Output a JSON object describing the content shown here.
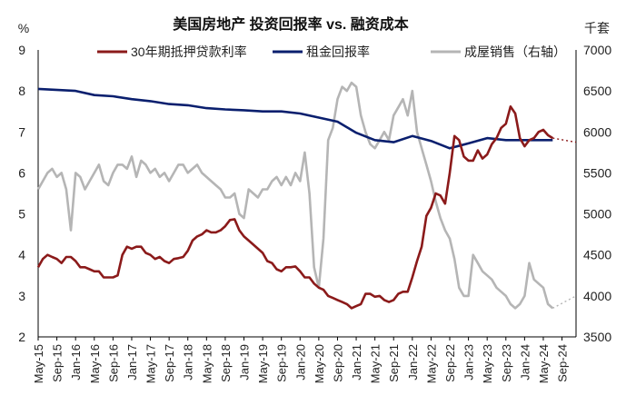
{
  "chart_data": {
    "type": "line",
    "title": "美国房地产 投资回报率 vs. 融资成本",
    "ylabel_left": "%",
    "ylabel_right": "千套",
    "ylim_left": [
      2,
      9
    ],
    "ylim_right": [
      3500,
      7000
    ],
    "yticks_left": [
      "2",
      "3",
      "4",
      "5",
      "6",
      "7",
      "8",
      "9"
    ],
    "yticks_right": [
      "3500",
      "4000",
      "4500",
      "5000",
      "5500",
      "6000",
      "6500",
      "7000"
    ],
    "x_range": [
      "2015-05",
      "2024-12"
    ],
    "x_ticks": [
      "May-15",
      "Sep-15",
      "Jan-16",
      "May-16",
      "Sep-16",
      "Jan-17",
      "May-17",
      "Sep-17",
      "Jan-18",
      "May-18",
      "Sep-18",
      "Jan-19",
      "May-19",
      "Sep-19",
      "Jan-20",
      "May-20",
      "Sep-20",
      "Jan-21",
      "May-21",
      "Sep-21",
      "Jan-22",
      "May-22",
      "Sep-22",
      "Jan-23",
      "May-23",
      "Sep-23",
      "Jan-24",
      "May-24",
      "Sep-24"
    ],
    "series": [
      {
        "name": "30年期抵押贷款利率",
        "axis": "left",
        "color": "#8b1a1a",
        "points": [
          [
            "2015-05",
            3.7
          ],
          [
            "2015-06",
            3.9
          ],
          [
            "2015-07",
            4.0
          ],
          [
            "2015-08",
            3.95
          ],
          [
            "2015-09",
            3.9
          ],
          [
            "2015-10",
            3.8
          ],
          [
            "2015-11",
            3.95
          ],
          [
            "2015-12",
            3.95
          ],
          [
            "2016-01",
            3.85
          ],
          [
            "2016-02",
            3.7
          ],
          [
            "2016-03",
            3.7
          ],
          [
            "2016-04",
            3.65
          ],
          [
            "2016-05",
            3.6
          ],
          [
            "2016-06",
            3.6
          ],
          [
            "2016-07",
            3.45
          ],
          [
            "2016-08",
            3.45
          ],
          [
            "2016-09",
            3.45
          ],
          [
            "2016-10",
            3.5
          ],
          [
            "2016-11",
            4.0
          ],
          [
            "2016-12",
            4.2
          ],
          [
            "2017-01",
            4.15
          ],
          [
            "2017-02",
            4.2
          ],
          [
            "2017-03",
            4.2
          ],
          [
            "2017-04",
            4.05
          ],
          [
            "2017-05",
            4.0
          ],
          [
            "2017-06",
            3.9
          ],
          [
            "2017-07",
            3.95
          ],
          [
            "2017-08",
            3.85
          ],
          [
            "2017-09",
            3.8
          ],
          [
            "2017-10",
            3.9
          ],
          [
            "2017-11",
            3.92
          ],
          [
            "2017-12",
            3.95
          ],
          [
            "2018-01",
            4.1
          ],
          [
            "2018-02",
            4.35
          ],
          [
            "2018-03",
            4.45
          ],
          [
            "2018-04",
            4.5
          ],
          [
            "2018-05",
            4.6
          ],
          [
            "2018-06",
            4.55
          ],
          [
            "2018-07",
            4.55
          ],
          [
            "2018-08",
            4.6
          ],
          [
            "2018-09",
            4.7
          ],
          [
            "2018-10",
            4.85
          ],
          [
            "2018-11",
            4.87
          ],
          [
            "2018-12",
            4.6
          ],
          [
            "2019-01",
            4.45
          ],
          [
            "2019-02",
            4.35
          ],
          [
            "2019-03",
            4.25
          ],
          [
            "2019-04",
            4.15
          ],
          [
            "2019-05",
            4.05
          ],
          [
            "2019-06",
            3.85
          ],
          [
            "2019-07",
            3.8
          ],
          [
            "2019-08",
            3.65
          ],
          [
            "2019-09",
            3.6
          ],
          [
            "2019-10",
            3.7
          ],
          [
            "2019-11",
            3.7
          ],
          [
            "2019-12",
            3.72
          ],
          [
            "2020-01",
            3.6
          ],
          [
            "2020-02",
            3.45
          ],
          [
            "2020-03",
            3.45
          ],
          [
            "2020-04",
            3.3
          ],
          [
            "2020-05",
            3.2
          ],
          [
            "2020-06",
            3.15
          ],
          [
            "2020-07",
            3.0
          ],
          [
            "2020-08",
            2.95
          ],
          [
            "2020-09",
            2.9
          ],
          [
            "2020-10",
            2.85
          ],
          [
            "2020-11",
            2.8
          ],
          [
            "2020-12",
            2.7
          ],
          [
            "2021-01",
            2.75
          ],
          [
            "2021-02",
            2.8
          ],
          [
            "2021-03",
            3.05
          ],
          [
            "2021-04",
            3.05
          ],
          [
            "2021-05",
            2.98
          ],
          [
            "2021-06",
            3.0
          ],
          [
            "2021-07",
            2.9
          ],
          [
            "2021-08",
            2.85
          ],
          [
            "2021-09",
            2.9
          ],
          [
            "2021-10",
            3.05
          ],
          [
            "2021-11",
            3.1
          ],
          [
            "2021-12",
            3.1
          ],
          [
            "2022-01",
            3.45
          ],
          [
            "2022-02",
            3.85
          ],
          [
            "2022-03",
            4.2
          ],
          [
            "2022-04",
            4.95
          ],
          [
            "2022-05",
            5.15
          ],
          [
            "2022-06",
            5.5
          ],
          [
            "2022-07",
            5.45
          ],
          [
            "2022-08",
            5.25
          ],
          [
            "2022-09",
            6.0
          ],
          [
            "2022-10",
            6.9
          ],
          [
            "2022-11",
            6.8
          ],
          [
            "2022-12",
            6.4
          ],
          [
            "2023-01",
            6.3
          ],
          [
            "2023-02",
            6.3
          ],
          [
            "2023-03",
            6.55
          ],
          [
            "2023-04",
            6.35
          ],
          [
            "2023-05",
            6.45
          ],
          [
            "2023-06",
            6.7
          ],
          [
            "2023-07",
            6.85
          ],
          [
            "2023-08",
            7.1
          ],
          [
            "2023-09",
            7.2
          ],
          [
            "2023-10",
            7.62
          ],
          [
            "2023-11",
            7.45
          ],
          [
            "2023-12",
            6.85
          ],
          [
            "2024-01",
            6.65
          ],
          [
            "2024-02",
            6.8
          ],
          [
            "2024-03",
            6.85
          ],
          [
            "2024-04",
            7.0
          ],
          [
            "2024-05",
            7.05
          ],
          [
            "2024-06",
            6.92
          ],
          [
            "2024-07",
            6.85
          ]
        ],
        "forecast": [
          [
            "2024-07",
            6.85
          ],
          [
            "2024-12",
            6.75
          ]
        ]
      },
      {
        "name": "租金回报率",
        "axis": "left",
        "color": "#0a1f6e",
        "points": [
          [
            "2015-05",
            8.05
          ],
          [
            "2016-01",
            8.0
          ],
          [
            "2016-05",
            7.9
          ],
          [
            "2016-09",
            7.87
          ],
          [
            "2017-01",
            7.8
          ],
          [
            "2017-05",
            7.75
          ],
          [
            "2017-09",
            7.68
          ],
          [
            "2018-01",
            7.65
          ],
          [
            "2018-05",
            7.58
          ],
          [
            "2018-09",
            7.55
          ],
          [
            "2019-01",
            7.53
          ],
          [
            "2019-05",
            7.5
          ],
          [
            "2019-09",
            7.5
          ],
          [
            "2020-01",
            7.45
          ],
          [
            "2020-05",
            7.35
          ],
          [
            "2020-09",
            7.25
          ],
          [
            "2021-01",
            6.98
          ],
          [
            "2021-05",
            6.8
          ],
          [
            "2021-09",
            6.75
          ],
          [
            "2022-01",
            6.9
          ],
          [
            "2022-05",
            6.78
          ],
          [
            "2022-09",
            6.6
          ],
          [
            "2023-01",
            6.72
          ],
          [
            "2023-05",
            6.85
          ],
          [
            "2023-09",
            6.8
          ],
          [
            "2024-01",
            6.8
          ],
          [
            "2024-05",
            6.8
          ],
          [
            "2024-07",
            6.8
          ]
        ]
      },
      {
        "name": "成屋销售（右轴）",
        "axis": "right",
        "color": "#b5b5b5",
        "points": [
          [
            "2015-05",
            5300
          ],
          [
            "2015-06",
            5400
          ],
          [
            "2015-07",
            5500
          ],
          [
            "2015-08",
            5550
          ],
          [
            "2015-09",
            5450
          ],
          [
            "2015-10",
            5500
          ],
          [
            "2015-11",
            5300
          ],
          [
            "2015-12",
            4800
          ],
          [
            "2016-01",
            5500
          ],
          [
            "2016-02",
            5450
          ],
          [
            "2016-03",
            5300
          ],
          [
            "2016-04",
            5400
          ],
          [
            "2016-05",
            5500
          ],
          [
            "2016-06",
            5600
          ],
          [
            "2016-07",
            5400
          ],
          [
            "2016-08",
            5350
          ],
          [
            "2016-09",
            5500
          ],
          [
            "2016-10",
            5600
          ],
          [
            "2016-11",
            5600
          ],
          [
            "2016-12",
            5550
          ],
          [
            "2017-01",
            5700
          ],
          [
            "2017-02",
            5450
          ],
          [
            "2017-03",
            5650
          ],
          [
            "2017-04",
            5600
          ],
          [
            "2017-05",
            5500
          ],
          [
            "2017-06",
            5550
          ],
          [
            "2017-07",
            5450
          ],
          [
            "2017-08",
            5500
          ],
          [
            "2017-09",
            5400
          ],
          [
            "2017-10",
            5500
          ],
          [
            "2017-11",
            5600
          ],
          [
            "2017-12",
            5600
          ],
          [
            "2018-01",
            5500
          ],
          [
            "2018-02",
            5550
          ],
          [
            "2018-03",
            5600
          ],
          [
            "2018-04",
            5500
          ],
          [
            "2018-05",
            5450
          ],
          [
            "2018-06",
            5400
          ],
          [
            "2018-07",
            5350
          ],
          [
            "2018-08",
            5300
          ],
          [
            "2018-09",
            5200
          ],
          [
            "2018-10",
            5200
          ],
          [
            "2018-11",
            5250
          ],
          [
            "2018-12",
            5000
          ],
          [
            "2019-01",
            4950
          ],
          [
            "2019-02",
            5300
          ],
          [
            "2019-03",
            5250
          ],
          [
            "2019-04",
            5200
          ],
          [
            "2019-05",
            5300
          ],
          [
            "2019-06",
            5300
          ],
          [
            "2019-07",
            5400
          ],
          [
            "2019-08",
            5450
          ],
          [
            "2019-09",
            5350
          ],
          [
            "2019-10",
            5450
          ],
          [
            "2019-11",
            5350
          ],
          [
            "2019-12",
            5500
          ],
          [
            "2020-01",
            5400
          ],
          [
            "2020-02",
            5750
          ],
          [
            "2020-03",
            5250
          ],
          [
            "2020-04",
            4350
          ],
          [
            "2020-05",
            4100
          ],
          [
            "2020-06",
            4700
          ],
          [
            "2020-07",
            5900
          ],
          [
            "2020-08",
            6050
          ],
          [
            "2020-09",
            6400
          ],
          [
            "2020-10",
            6550
          ],
          [
            "2020-11",
            6500
          ],
          [
            "2020-12",
            6600
          ],
          [
            "2021-01",
            6550
          ],
          [
            "2021-02",
            6200
          ],
          [
            "2021-03",
            6000
          ],
          [
            "2021-04",
            5850
          ],
          [
            "2021-05",
            5800
          ],
          [
            "2021-06",
            5900
          ],
          [
            "2021-07",
            6000
          ],
          [
            "2021-08",
            5900
          ],
          [
            "2021-09",
            6200
          ],
          [
            "2021-10",
            6300
          ],
          [
            "2021-11",
            6400
          ],
          [
            "2021-12",
            6200
          ],
          [
            "2022-01",
            6500
          ],
          [
            "2022-02",
            6000
          ],
          [
            "2022-03",
            5800
          ],
          [
            "2022-04",
            5600
          ],
          [
            "2022-05",
            5400
          ],
          [
            "2022-06",
            5150
          ],
          [
            "2022-07",
            4950
          ],
          [
            "2022-08",
            4800
          ],
          [
            "2022-09",
            4700
          ],
          [
            "2022-10",
            4450
          ],
          [
            "2022-11",
            4100
          ],
          [
            "2022-12",
            4000
          ],
          [
            "2023-01",
            4000
          ],
          [
            "2023-02",
            4500
          ],
          [
            "2023-03",
            4400
          ],
          [
            "2023-04",
            4300
          ],
          [
            "2023-05",
            4250
          ],
          [
            "2023-06",
            4200
          ],
          [
            "2023-07",
            4100
          ],
          [
            "2023-08",
            4050
          ],
          [
            "2023-09",
            4000
          ],
          [
            "2023-10",
            3900
          ],
          [
            "2023-11",
            3850
          ],
          [
            "2023-12",
            3900
          ],
          [
            "2024-01",
            4000
          ],
          [
            "2024-02",
            4400
          ],
          [
            "2024-03",
            4200
          ],
          [
            "2024-04",
            4150
          ],
          [
            "2024-05",
            4100
          ],
          [
            "2024-06",
            3900
          ],
          [
            "2024-07",
            3850
          ]
        ],
        "forecast": [
          [
            "2024-07",
            3850
          ],
          [
            "2024-12",
            4000
          ]
        ]
      }
    ]
  }
}
